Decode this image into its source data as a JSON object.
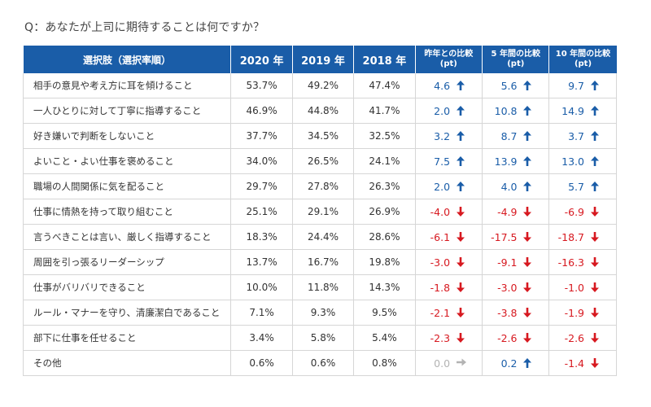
{
  "question": "Q：あなたが上司に期待することは何ですか？",
  "table": {
    "headers": {
      "label": "選択肢（選択率順）",
      "years": [
        "2020 年",
        "2019 年",
        "2018 年"
      ],
      "diffs": [
        {
          "line1": "昨年との比較",
          "line2": "(pt)"
        },
        {
          "line1": "5 年間の比較",
          "line2": "(pt)"
        },
        {
          "line1": "10 年間の比較",
          "line2": "(pt)"
        }
      ]
    },
    "colors": {
      "header_bg": "#1a5da8",
      "up": "#1a5da8",
      "down": "#d71920",
      "flat": "#b3b3b3"
    },
    "rows": [
      {
        "label": "相手の意見や考え方に耳を傾けること",
        "years": [
          "53.7%",
          "49.2%",
          "47.4%"
        ],
        "diffs": [
          {
            "value": "4.6",
            "dir": "up"
          },
          {
            "value": "5.6",
            "dir": "up"
          },
          {
            "value": "9.7",
            "dir": "up"
          }
        ]
      },
      {
        "label": "一人ひとりに対して丁寧に指導すること",
        "years": [
          "46.9%",
          "44.8%",
          "41.7%"
        ],
        "diffs": [
          {
            "value": "2.0",
            "dir": "up"
          },
          {
            "value": "10.8",
            "dir": "up"
          },
          {
            "value": "14.9",
            "dir": "up"
          }
        ]
      },
      {
        "label": "好き嫌いで判断をしないこと",
        "years": [
          "37.7%",
          "34.5%",
          "32.5%"
        ],
        "diffs": [
          {
            "value": "3.2",
            "dir": "up"
          },
          {
            "value": "8.7",
            "dir": "up"
          },
          {
            "value": "3.7",
            "dir": "up"
          }
        ]
      },
      {
        "label": "よいこと・よい仕事を褒めること",
        "years": [
          "34.0%",
          "26.5%",
          "24.1%"
        ],
        "diffs": [
          {
            "value": "7.5",
            "dir": "up"
          },
          {
            "value": "13.9",
            "dir": "up"
          },
          {
            "value": "13.0",
            "dir": "up"
          }
        ]
      },
      {
        "label": "職場の人間関係に気を配ること",
        "years": [
          "29.7%",
          "27.8%",
          "26.3%"
        ],
        "diffs": [
          {
            "value": "2.0",
            "dir": "up"
          },
          {
            "value": "4.0",
            "dir": "up"
          },
          {
            "value": "5.7",
            "dir": "up"
          }
        ]
      },
      {
        "label": "仕事に情熱を持って取り組むこと",
        "years": [
          "25.1%",
          "29.1%",
          "26.9%"
        ],
        "diffs": [
          {
            "value": "-4.0",
            "dir": "down"
          },
          {
            "value": "-4.9",
            "dir": "down"
          },
          {
            "value": "-6.9",
            "dir": "down"
          }
        ]
      },
      {
        "label": "言うべきことは言い、厳しく指導すること",
        "years": [
          "18.3%",
          "24.4%",
          "28.6%"
        ],
        "diffs": [
          {
            "value": "-6.1",
            "dir": "down"
          },
          {
            "value": "-17.5",
            "dir": "down"
          },
          {
            "value": "-18.7",
            "dir": "down"
          }
        ]
      },
      {
        "label": "周囲を引っ張るリーダーシップ",
        "years": [
          "13.7%",
          "16.7%",
          "19.8%"
        ],
        "diffs": [
          {
            "value": "-3.0",
            "dir": "down"
          },
          {
            "value": "-9.1",
            "dir": "down"
          },
          {
            "value": "-16.3",
            "dir": "down"
          }
        ]
      },
      {
        "label": "仕事がバリバリできること",
        "years": [
          "10.0%",
          "11.8%",
          "14.3%"
        ],
        "diffs": [
          {
            "value": "-1.8",
            "dir": "down"
          },
          {
            "value": "-3.0",
            "dir": "down"
          },
          {
            "value": "-1.0",
            "dir": "down"
          }
        ]
      },
      {
        "label": "ルール・マナーを守り、清廉潔白であること",
        "years": [
          "7.1%",
          "9.3%",
          "9.5%"
        ],
        "diffs": [
          {
            "value": "-2.1",
            "dir": "down"
          },
          {
            "value": "-3.8",
            "dir": "down"
          },
          {
            "value": "-1.9",
            "dir": "down"
          }
        ]
      },
      {
        "label": "部下に仕事を任せること",
        "years": [
          "3.4%",
          "5.8%",
          "5.4%"
        ],
        "diffs": [
          {
            "value": "-2.3",
            "dir": "down"
          },
          {
            "value": "-2.6",
            "dir": "down"
          },
          {
            "value": "-2.6",
            "dir": "down"
          }
        ]
      },
      {
        "label": "その他",
        "years": [
          "0.6%",
          "0.6%",
          "0.8%"
        ],
        "diffs": [
          {
            "value": "0.0",
            "dir": "flat"
          },
          {
            "value": "0.2",
            "dir": "up"
          },
          {
            "value": "-1.4",
            "dir": "down"
          }
        ]
      }
    ]
  }
}
